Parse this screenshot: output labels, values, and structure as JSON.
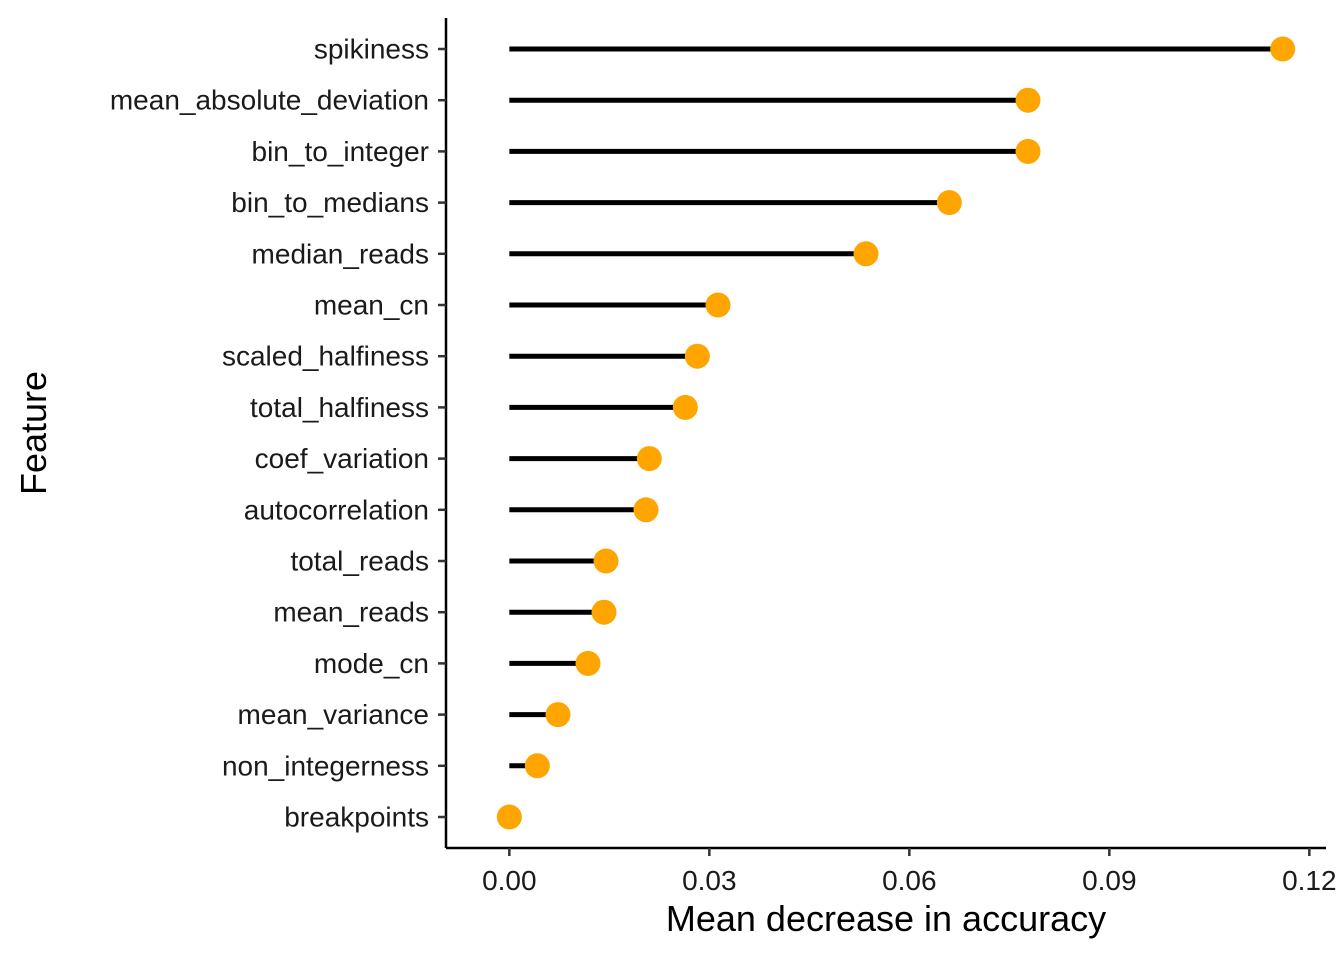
{
  "chart_data": {
    "type": "lollipop",
    "orientation": "horizontal",
    "title": "",
    "xlabel": "Mean decrease in accuracy",
    "ylabel": "Feature",
    "xlim": [
      -0.0095,
      0.1225
    ],
    "xticks": [
      0.0,
      0.03,
      0.06,
      0.09,
      0.12
    ],
    "xtick_labels": [
      "0.00",
      "0.03",
      "0.06",
      "0.09",
      "0.12"
    ],
    "grid": false,
    "legend": "none",
    "stem_color": "#000000",
    "point_color": "#FFA500",
    "categories": [
      "spikiness",
      "mean_absolute_deviation",
      "bin_to_integer",
      "bin_to_medians",
      "median_reads",
      "mean_cn",
      "scaled_halfiness",
      "total_halfiness",
      "coef_variation",
      "autocorrelation",
      "total_reads",
      "mean_reads",
      "mode_cn",
      "mean_variance",
      "non_integerness",
      "breakpoints"
    ],
    "values": [
      0.116,
      0.0778,
      0.0778,
      0.066,
      0.0535,
      0.0313,
      0.0282,
      0.0264,
      0.021,
      0.0205,
      0.0145,
      0.0142,
      0.0118,
      0.0073,
      0.0042,
      0.0
    ]
  }
}
